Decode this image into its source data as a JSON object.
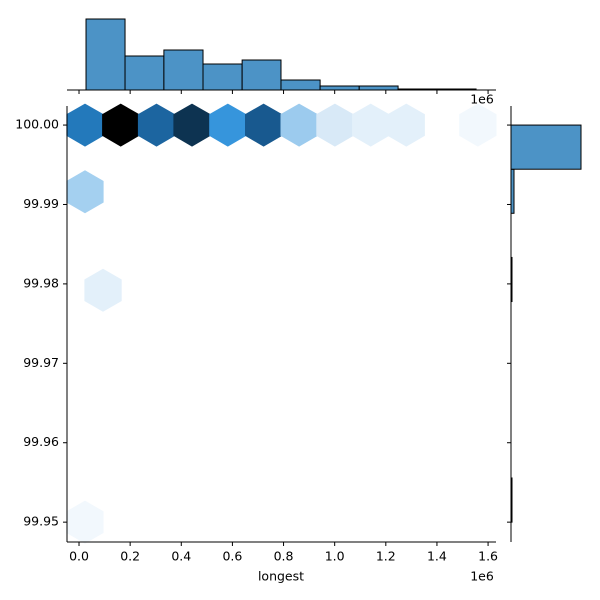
{
  "chart_data": {
    "type": "hexbin_joint",
    "x_label": "longest",
    "x_offset_label": "1e6",
    "xlim": [
      -47000,
      1631000
    ],
    "ylim": [
      99.9475,
      100.0024
    ],
    "xticks": [
      {
        "value": 0,
        "label": "0.0"
      },
      {
        "value": 200000,
        "label": "0.2"
      },
      {
        "value": 400000,
        "label": "0.4"
      },
      {
        "value": 600000,
        "label": "0.6"
      },
      {
        "value": 800000,
        "label": "0.8"
      },
      {
        "value": 1000000,
        "label": "1.0"
      },
      {
        "value": 1200000,
        "label": "1.2"
      },
      {
        "value": 1400000,
        "label": "1.4"
      },
      {
        "value": 1600000,
        "label": "1.6"
      }
    ],
    "yticks": [
      {
        "value": 99.95,
        "label": "99.95"
      },
      {
        "value": 99.96,
        "label": "99.96"
      },
      {
        "value": 99.97,
        "label": "99.97"
      },
      {
        "value": 99.98,
        "label": "99.98"
      },
      {
        "value": 99.99,
        "label": "99.99"
      },
      {
        "value": 100.0,
        "label": "100.00"
      }
    ],
    "hexes": {
      "x": [
        23500,
        163000,
        303000,
        442000,
        582000,
        722000,
        861000,
        1001000,
        1141000,
        1280000,
        1560000,
        23500,
        94000,
        23500
      ],
      "y": [
        100.0,
        100.0,
        100.0,
        100.0,
        100.0,
        100.0,
        100.0,
        100.0,
        100.0,
        100.0,
        100.0,
        99.9916,
        99.9792,
        99.95
      ],
      "colors": [
        "#2379bb",
        "#000000",
        "#1c65a0",
        "#0d3351",
        "#3695dc",
        "#18598f",
        "#9ccbee",
        "#d8e9f7",
        "#e3f0fa",
        "#e3f0fa",
        "#f2f8fd",
        "#a4d0f0",
        "#e3f0fa",
        "#f2f8fd"
      ]
    },
    "x_hist": {
      "bins": [
        27400,
        180000,
        332000,
        485000,
        638000,
        790000,
        943000,
        1096000,
        1248000,
        1401000,
        1553000
      ],
      "counts": [
        71,
        34,
        40,
        26,
        30,
        10,
        4,
        4,
        1,
        1
      ],
      "color": "#4c93c6"
    },
    "y_hist": {
      "bins": [
        99.95,
        99.95556,
        99.96111,
        99.96667,
        99.97222,
        99.97778,
        99.98333,
        99.98889,
        99.99444,
        100.0
      ],
      "counts": [
        1,
        0,
        0,
        0,
        0,
        1,
        0,
        3,
        70
      ],
      "color": "#4c93c6"
    }
  }
}
